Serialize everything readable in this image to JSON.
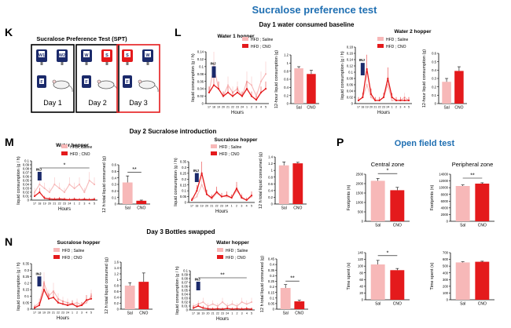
{
  "figure": {
    "title": "Sucralose preference test",
    "panel_letters": {
      "K": "K",
      "L": "L",
      "M": "M",
      "N": "N",
      "P": "P"
    },
    "day1_heading": "Day 1 water consumed baseline",
    "day2_heading": "Day 2 Sucralose introduction",
    "day3_heading": "Day 3 Bottles swapped",
    "open_field_title": "Open field test",
    "inj_label": "INJ",
    "hours_label": "Hours",
    "colors": {
      "saline": "#f7b8b8",
      "cno": "#e41a1c",
      "title_blue": "#1f6fb2",
      "axis": "#000000"
    }
  },
  "panel_k": {
    "title": "Sucralose Preference Test (SPT)",
    "days": [
      {
        "label": "Day 1",
        "bottles": [
          "W1",
          "W2"
        ],
        "bottle_colors": [
          "navy",
          "navy"
        ],
        "frame": "#000000"
      },
      {
        "label": "Day 2",
        "bottles": [
          "W",
          "S"
        ],
        "bottle_colors": [
          "navy",
          "red"
        ],
        "frame": "#000000"
      },
      {
        "label": "Day 3",
        "bottles": [
          "S",
          "W"
        ],
        "bottle_colors": [
          "red",
          "navy"
        ],
        "frame": "#e41a1c"
      }
    ],
    "food_label": "F"
  },
  "chart_data": [
    {
      "id": "L-water1-line",
      "type": "line",
      "title": "Water 1 hopper",
      "xlabel": "Hours",
      "ylabel": "liquid consumption (g / h)",
      "categories": [
        "17",
        "18",
        "19",
        "20",
        "21",
        "22",
        "23",
        "24",
        "1",
        "2",
        "3",
        "4",
        "5"
      ],
      "ylim": [
        0,
        0.14
      ],
      "yticks": [
        "0",
        "0.02",
        "0.04",
        "0.06",
        "0.08",
        "0.1",
        "0.12",
        "0.14"
      ],
      "series": [
        {
          "name": "HFD ; Saline",
          "values": [
            0.03,
            0.1,
            0.04,
            0.02,
            0.05,
            0.03,
            0.04,
            0.02,
            0.06,
            0.05,
            0.02,
            0.06,
            0.08
          ],
          "color": "#f7b8b8"
        },
        {
          "name": "HFD ; CNO",
          "values": [
            0.03,
            0.05,
            0.04,
            0.02,
            0.03,
            0.02,
            0.03,
            0.02,
            0.04,
            0.02,
            0.01,
            0.03,
            0.04
          ],
          "color": "#e41a1c"
        }
      ],
      "legend": [
        "HFD ; Saline",
        "HFD ; CNO"
      ],
      "inj": true
    },
    {
      "id": "L-water1-bar",
      "type": "bar",
      "title": "",
      "ylabel": "12-hour liquid consumption (g)",
      "categories": [
        "Sal",
        "CNO"
      ],
      "values": [
        0.87,
        0.73
      ],
      "errors": [
        0.04,
        0.09
      ],
      "colors": [
        "#f7b8b8",
        "#e41a1c"
      ],
      "ylim": [
        0,
        1.2
      ],
      "yticks": [
        "0",
        "0.2",
        "0.4",
        "0.6",
        "0.8",
        "1",
        "1.2"
      ]
    },
    {
      "id": "L-water2-line",
      "type": "line",
      "title": "Water 2 hopper",
      "xlabel": "Hours",
      "ylabel": "liquid consumption (g / h)",
      "categories": [
        "17",
        "18",
        "19",
        "20",
        "21",
        "22",
        "23",
        "24",
        "1",
        "2",
        "3",
        "4",
        "5"
      ],
      "ylim": [
        0,
        0.18
      ],
      "yticks": [
        "0",
        "0.02",
        "0.04",
        "0.06",
        "0.08",
        "0.1",
        "0.12",
        "0.14",
        "0.16",
        "0.18"
      ],
      "series": [
        {
          "name": "HFD ; Saline",
          "values": [
            0.01,
            0.02,
            0.06,
            0.02,
            0.01,
            0.01,
            0.02,
            0.06,
            0.01,
            0.01,
            0.01,
            0.02,
            0.01
          ],
          "color": "#f7b8b8"
        },
        {
          "name": "HFD ; CNO",
          "values": [
            0.01,
            0.02,
            0.11,
            0.03,
            0.01,
            0.01,
            0.02,
            0.08,
            0.02,
            0.01,
            0.01,
            0.01,
            0.01
          ],
          "color": "#e41a1c"
        }
      ],
      "legend": [
        "HFD ; Saline",
        "HFD ; CNO"
      ],
      "inj": true
    },
    {
      "id": "L-water2-bar",
      "type": "bar",
      "title": "",
      "ylabel": "12-hour liquid consumption (g)",
      "categories": [
        "Sal",
        "CNO"
      ],
      "values": [
        0.26,
        0.39
      ],
      "errors": [
        0.04,
        0.05
      ],
      "colors": [
        "#f7b8b8",
        "#e41a1c"
      ],
      "ylim": [
        0,
        0.6
      ],
      "yticks": [
        "0",
        "0.1",
        "0.2",
        "0.3",
        "0.4",
        "0.5",
        "0.6"
      ]
    },
    {
      "id": "M-water-line",
      "type": "line",
      "title": "Water hopper",
      "xlabel": "Hours",
      "ylabel": "liquid consumption (g / h)",
      "categories": [
        "17",
        "18",
        "19",
        "20",
        "21",
        "22",
        "23",
        "24",
        "1",
        "2",
        "3",
        "4",
        "5"
      ],
      "ylim": [
        0,
        0.1
      ],
      "yticks": [
        "0",
        "0.01",
        "0.02",
        "0.03",
        "0.04",
        "0.05",
        "0.06",
        "0.07",
        "0.08",
        "0.09",
        "0.1"
      ],
      "series": [
        {
          "name": "HFD ; Saline",
          "values": [
            0.02,
            0.04,
            0.03,
            0.02,
            0.04,
            0.03,
            0.02,
            0.04,
            0.03,
            0.04,
            0.02,
            0.05,
            0.04
          ],
          "color": "#f7b8b8"
        },
        {
          "name": "HFD ; CNO",
          "values": [
            0.01,
            0.02,
            0.005,
            0.003,
            0.002,
            0.003,
            0.002,
            0.001,
            0.002,
            0.001,
            0.002,
            0.001,
            0.002
          ],
          "color": "#e41a1c"
        }
      ],
      "legend": [
        "HFD ; Saline",
        "HFD ; CNO"
      ],
      "inj": true,
      "sig": "*"
    },
    {
      "id": "M-water-bar",
      "type": "bar",
      "title": "",
      "ylabel": "12 h total liquid consumed (g)",
      "categories": [
        "Sal",
        "CNO"
      ],
      "values": [
        0.33,
        0.05
      ],
      "errors": [
        0.1,
        0.01
      ],
      "colors": [
        "#f7b8b8",
        "#e41a1c"
      ],
      "ylim": [
        0,
        0.6
      ],
      "yticks": [
        "0",
        "0.1",
        "0.2",
        "0.3",
        "0.4",
        "0.5",
        "0.6"
      ],
      "sig": "**"
    },
    {
      "id": "M-sucralose-line",
      "type": "line",
      "title": "Sucralose hopper",
      "xlabel": "Hours",
      "ylabel": "liquid consumption (g / h)",
      "categories": [
        "17",
        "18",
        "19",
        "20",
        "21",
        "22",
        "23",
        "24",
        "1",
        "2",
        "3",
        "4",
        "5"
      ],
      "ylim": [
        0,
        0.35
      ],
      "yticks": [
        "0",
        "0.05",
        "0.1",
        "0.15",
        "0.2",
        "0.25",
        "0.3",
        "0.35"
      ],
      "series": [
        {
          "name": "HFD ; Saline",
          "values": [
            0.02,
            0.05,
            0.15,
            0.07,
            0.03,
            0.08,
            0.05,
            0.05,
            0.04,
            0.1,
            0.05,
            0.02,
            0.05
          ],
          "color": "#f7b8b8"
        },
        {
          "name": "HFD ; CNO",
          "values": [
            0.02,
            0.1,
            0.25,
            0.07,
            0.04,
            0.09,
            0.05,
            0.06,
            0.04,
            0.12,
            0.04,
            0.02,
            0.06
          ],
          "color": "#e41a1c"
        }
      ],
      "legend": [
        "HFD ; Saline",
        "HFD ; CNO"
      ],
      "inj": true
    },
    {
      "id": "M-sucralose-bar",
      "type": "bar",
      "title": "",
      "ylabel": "12 h total liquid consumed (g)",
      "categories": [
        "Sal",
        "CNO"
      ],
      "values": [
        1.15,
        1.21
      ],
      "errors": [
        0.1,
        0.03
      ],
      "colors": [
        "#f7b8b8",
        "#e41a1c"
      ],
      "ylim": [
        0,
        1.4
      ],
      "yticks": [
        "0",
        "0.2",
        "0.4",
        "0.6",
        "0.8",
        "1",
        "1.2",
        "1.4"
      ]
    },
    {
      "id": "N-sucralose-line",
      "type": "line",
      "title": "Sucralose hopper",
      "xlabel": "Hours",
      "ylabel": "liquid consumption (g / h)",
      "categories": [
        "17",
        "18",
        "19",
        "20",
        "21",
        "22",
        "23",
        "24",
        "1",
        "2",
        "3",
        "4",
        "5"
      ],
      "ylim": [
        0,
        0.35
      ],
      "yticks": [
        "0",
        "0.05",
        "0.1",
        "0.15",
        "0.2",
        "0.25",
        "0.3",
        "0.35"
      ],
      "series": [
        {
          "name": "HFD ; Saline",
          "values": [
            0.02,
            0.05,
            0.2,
            0.1,
            0.14,
            0.08,
            0.06,
            0.05,
            0.04,
            0.05,
            0.03,
            0.05,
            0.1
          ],
          "color": "#f7b8b8"
        },
        {
          "name": "HFD ; CNO",
          "values": [
            0.01,
            0.03,
            0.15,
            0.08,
            0.09,
            0.05,
            0.04,
            0.03,
            0.04,
            0.02,
            0.03,
            0.07,
            0.08
          ],
          "color": "#e41a1c"
        }
      ],
      "legend": [
        "HFD ; Saline",
        "HFD ; CNO"
      ],
      "inj": true
    },
    {
      "id": "N-sucralose-bar",
      "type": "bar",
      "title": "",
      "ylabel": "12 h total liquid consumed (g)",
      "categories": [
        "Sal",
        "CNO"
      ],
      "values": [
        0.8,
        0.93
      ],
      "errors": [
        0.1,
        0.3
      ],
      "colors": [
        "#f7b8b8",
        "#e41a1c"
      ],
      "ylim": [
        0,
        1.6
      ],
      "yticks": [
        "0",
        "0.2",
        "0.4",
        "0.6",
        "0.8",
        "1",
        "1.2",
        "1.4",
        "1.6"
      ]
    },
    {
      "id": "N-water-line",
      "type": "line",
      "title": "Water hopper",
      "xlabel": "Hours",
      "ylabel": "liquid consumption (g / h)",
      "categories": [
        "17",
        "18",
        "19",
        "20",
        "21",
        "22",
        "23",
        "24",
        "1",
        "2",
        "3",
        "4",
        "5"
      ],
      "ylim": [
        0,
        0.1
      ],
      "yticks": [
        "0",
        "0.01",
        "0.02",
        "0.03",
        "0.04",
        "0.05",
        "0.06",
        "0.07",
        "0.08",
        "0.09",
        "0.1"
      ],
      "series": [
        {
          "name": "HFD ; Saline",
          "values": [
            0.01,
            0.015,
            0.02,
            0.01,
            0.015,
            0.01,
            0.02,
            0.01,
            0.015,
            0.01,
            0.02,
            0.015,
            0.02
          ],
          "color": "#f7b8b8"
        },
        {
          "name": "HFD ; CNO",
          "values": [
            0.005,
            0.01,
            0.005,
            0.003,
            0.002,
            0.003,
            0.002,
            0.004,
            0.002,
            0.003,
            0.002,
            0.003,
            0.002
          ],
          "color": "#e41a1c"
        }
      ],
      "legend": [
        "HFD ; Saline",
        "HFD ; CNO"
      ],
      "inj": true,
      "sig": "**"
    },
    {
      "id": "N-water-bar",
      "type": "bar",
      "title": "",
      "ylabel": "12 h total liquid consumed (g)",
      "categories": [
        "Sal",
        "CNO"
      ],
      "values": [
        0.19,
        0.07
      ],
      "errors": [
        0.03,
        0.01
      ],
      "colors": [
        "#f7b8b8",
        "#e41a1c"
      ],
      "ylim": [
        0,
        0.45
      ],
      "yticks": [
        "0",
        "0.05",
        "0.1",
        "0.15",
        "0.2",
        "0.25",
        "0.3",
        "0.35",
        "0.4",
        "0.45"
      ],
      "sig": "**"
    },
    {
      "id": "P-central-footprints",
      "type": "bar",
      "title": "Central zone",
      "ylabel": "Footprints (n)",
      "categories": [
        "Sal",
        "CNO"
      ],
      "values": [
        2150,
        1650
      ],
      "errors": [
        120,
        150
      ],
      "colors": [
        "#f7b8b8",
        "#e41a1c"
      ],
      "ylim": [
        0,
        2500
      ],
      "yticks": [
        "0",
        "500",
        "1000",
        "1500",
        "2000",
        "2500"
      ],
      "sig": "*"
    },
    {
      "id": "P-peripheral-footprints",
      "type": "bar",
      "title": "Peripheral zone",
      "ylabel": "Footprints (n)",
      "categories": [
        "Sal",
        "CNO"
      ],
      "values": [
        10500,
        11200
      ],
      "errors": [
        300,
        250
      ],
      "colors": [
        "#f7b8b8",
        "#e41a1c"
      ],
      "ylim": [
        0,
        14000
      ],
      "yticks": [
        "0",
        "2000",
        "4000",
        "6000",
        "8000",
        "10000",
        "12000",
        "14000"
      ],
      "sig": "**"
    },
    {
      "id": "P-central-time",
      "type": "bar",
      "title": "",
      "ylabel": "Time spent (s)",
      "categories": [
        "Sal",
        "CNO"
      ],
      "values": [
        105,
        88
      ],
      "errors": [
        12,
        5
      ],
      "colors": [
        "#f7b8b8",
        "#e41a1c"
      ],
      "ylim": [
        0,
        140
      ],
      "yticks": [
        "0",
        "20",
        "40",
        "60",
        "80",
        "100",
        "120",
        "140"
      ],
      "sig": "*"
    },
    {
      "id": "P-peripheral-time",
      "type": "bar",
      "title": "",
      "ylabel": "Time spent (s)",
      "categories": [
        "Sal",
        "CNO"
      ],
      "values": [
        555,
        565
      ],
      "errors": [
        10,
        8
      ],
      "colors": [
        "#f7b8b8",
        "#e41a1c"
      ],
      "ylim": [
        0,
        700
      ],
      "yticks": [
        "0",
        "100",
        "200",
        "300",
        "400",
        "500",
        "600",
        "700"
      ]
    }
  ]
}
